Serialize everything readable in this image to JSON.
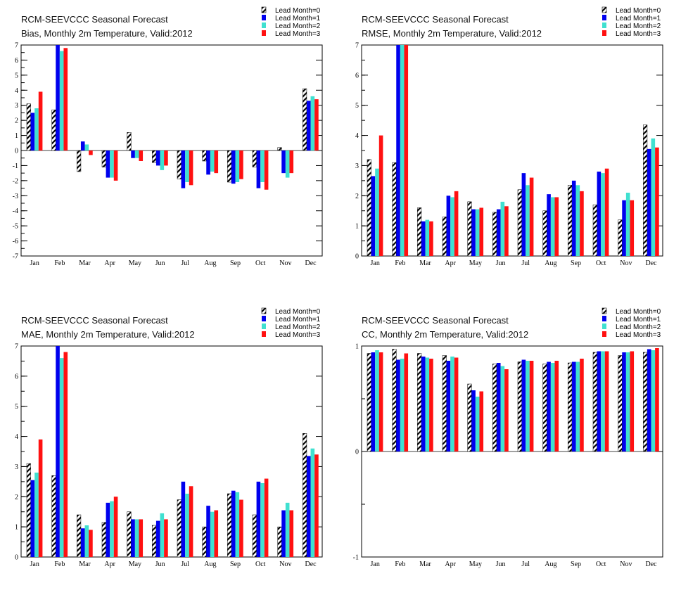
{
  "colors": {
    "lead0": "hatched-black",
    "lead1": "#0000ee",
    "lead2": "#40e0d0",
    "lead3": "#ff1111"
  },
  "chart_data": [
    {
      "type": "bar",
      "title": "RCM-SEEVCCC Seasonal Forecast",
      "subtitle": "Bias, Monthly 2m Temperature, Valid:2012",
      "categories": [
        "Jan",
        "Feb",
        "Mar",
        "Apr",
        "May",
        "Jun",
        "Jul",
        "Aug",
        "Sep",
        "Oct",
        "Nov",
        "Dec"
      ],
      "ylim": [
        -7,
        7
      ],
      "yticks": [
        "-7",
        "-6",
        "-5",
        "-4",
        "-3",
        "-2",
        "-1",
        "0",
        "1",
        "2",
        "3",
        "4",
        "5",
        "6",
        "7"
      ],
      "series": [
        {
          "name": "Lead Month=0",
          "values": [
            3.1,
            2.7,
            -1.4,
            -1.1,
            1.2,
            -0.8,
            -1.9,
            -0.7,
            -2.1,
            -1.1,
            0.2,
            4.1
          ]
        },
        {
          "name": "Lead Month=1",
          "values": [
            2.5,
            7.0,
            0.6,
            -1.8,
            -0.5,
            -1.0,
            -2.5,
            -1.6,
            -2.2,
            -2.5,
            -1.5,
            3.3
          ]
        },
        {
          "name": "Lead Month=2",
          "values": [
            2.8,
            6.6,
            0.4,
            -1.8,
            -0.5,
            -1.3,
            -2.1,
            -1.4,
            -2.1,
            -2.1,
            -1.8,
            3.6
          ]
        },
        {
          "name": "Lead Month=3",
          "values": [
            3.9,
            6.8,
            -0.3,
            -2.0,
            -0.7,
            -1.0,
            -2.3,
            -1.5,
            -1.9,
            -2.6,
            -1.5,
            3.4
          ]
        }
      ],
      "grid": false,
      "legend_position": "top-right"
    },
    {
      "type": "bar",
      "title": "RCM-SEEVCCC Seasonal Forecast",
      "subtitle": "RMSE, Monthly 2m Temperature, Valid:2012",
      "categories": [
        "Jan",
        "Feb",
        "Mar",
        "Apr",
        "May",
        "Jun",
        "Jul",
        "Aug",
        "Sep",
        "Oct",
        "Nov",
        "Dec"
      ],
      "ylim": [
        0,
        7
      ],
      "yticks": [
        "0",
        "1",
        "2",
        "3",
        "4",
        "5",
        "6",
        "7"
      ],
      "series": [
        {
          "name": "Lead Month=0",
          "values": [
            3.2,
            3.1,
            1.6,
            1.3,
            1.8,
            1.45,
            2.2,
            1.5,
            2.35,
            1.7,
            1.2,
            4.35
          ]
        },
        {
          "name": "Lead Month=1",
          "values": [
            2.65,
            7.0,
            1.15,
            2.0,
            1.55,
            1.55,
            2.75,
            2.05,
            2.5,
            2.8,
            1.85,
            3.55
          ]
        },
        {
          "name": "Lead Month=2",
          "values": [
            2.9,
            7.0,
            1.2,
            1.95,
            1.55,
            1.8,
            2.35,
            1.95,
            2.35,
            2.75,
            2.1,
            3.9
          ]
        },
        {
          "name": "Lead Month=3",
          "values": [
            4.0,
            7.0,
            1.15,
            2.15,
            1.6,
            1.65,
            2.6,
            1.95,
            2.15,
            2.9,
            1.85,
            3.6
          ]
        }
      ],
      "grid": false,
      "legend_position": "top-right"
    },
    {
      "type": "bar",
      "title": "RCM-SEEVCCC Seasonal Forecast",
      "subtitle": "MAE, Monthly 2m Temperature, Valid:2012",
      "categories": [
        "Jan",
        "Feb",
        "Mar",
        "Apr",
        "May",
        "Jun",
        "Jul",
        "Aug",
        "Sep",
        "Oct",
        "Nov",
        "Dec"
      ],
      "ylim": [
        0,
        7
      ],
      "yticks": [
        "0",
        "1",
        "2",
        "3",
        "4",
        "5",
        "6",
        "7"
      ],
      "series": [
        {
          "name": "Lead Month=0",
          "values": [
            3.1,
            2.7,
            1.4,
            1.15,
            1.5,
            1.05,
            1.9,
            1.0,
            2.1,
            1.4,
            1.0,
            4.1
          ]
        },
        {
          "name": "Lead Month=1",
          "values": [
            2.55,
            7.0,
            0.95,
            1.8,
            1.25,
            1.2,
            2.5,
            1.7,
            2.2,
            2.5,
            1.55,
            3.35
          ]
        },
        {
          "name": "Lead Month=2",
          "values": [
            2.8,
            6.6,
            1.05,
            1.85,
            1.25,
            1.45,
            2.1,
            1.5,
            2.15,
            2.45,
            1.8,
            3.6
          ]
        },
        {
          "name": "Lead Month=3",
          "values": [
            3.9,
            6.8,
            0.9,
            2.0,
            1.25,
            1.25,
            2.35,
            1.55,
            1.9,
            2.6,
            1.55,
            3.4
          ]
        }
      ],
      "grid": false,
      "legend_position": "top-right"
    },
    {
      "type": "bar",
      "title": "RCM-SEEVCCC Seasonal Forecast",
      "subtitle": "CC, Monthly 2m Temperature, Valid:2012",
      "categories": [
        "Jan",
        "Feb",
        "Mar",
        "Apr",
        "May",
        "Jun",
        "Jul",
        "Aug",
        "Sep",
        "Oct",
        "Nov",
        "Dec"
      ],
      "ylim": [
        -1,
        1
      ],
      "yticks": [
        "-1",
        "0",
        "1"
      ],
      "series": [
        {
          "name": "Lead Month=0",
          "values": [
            0.93,
            0.97,
            0.93,
            0.91,
            0.64,
            0.83,
            0.85,
            0.83,
            0.84,
            0.94,
            0.91,
            0.94
          ]
        },
        {
          "name": "Lead Month=1",
          "values": [
            0.94,
            0.87,
            0.9,
            0.86,
            0.58,
            0.84,
            0.87,
            0.85,
            0.85,
            0.95,
            0.94,
            0.97
          ]
        },
        {
          "name": "Lead Month=2",
          "values": [
            0.96,
            0.88,
            0.89,
            0.9,
            0.52,
            0.81,
            0.86,
            0.84,
            0.85,
            0.95,
            0.94,
            0.96
          ]
        },
        {
          "name": "Lead Month=3",
          "values": [
            0.94,
            0.93,
            0.88,
            0.89,
            0.57,
            0.78,
            0.86,
            0.86,
            0.88,
            0.95,
            0.95,
            0.98
          ]
        }
      ],
      "grid": false,
      "legend_position": "top-right"
    }
  ]
}
